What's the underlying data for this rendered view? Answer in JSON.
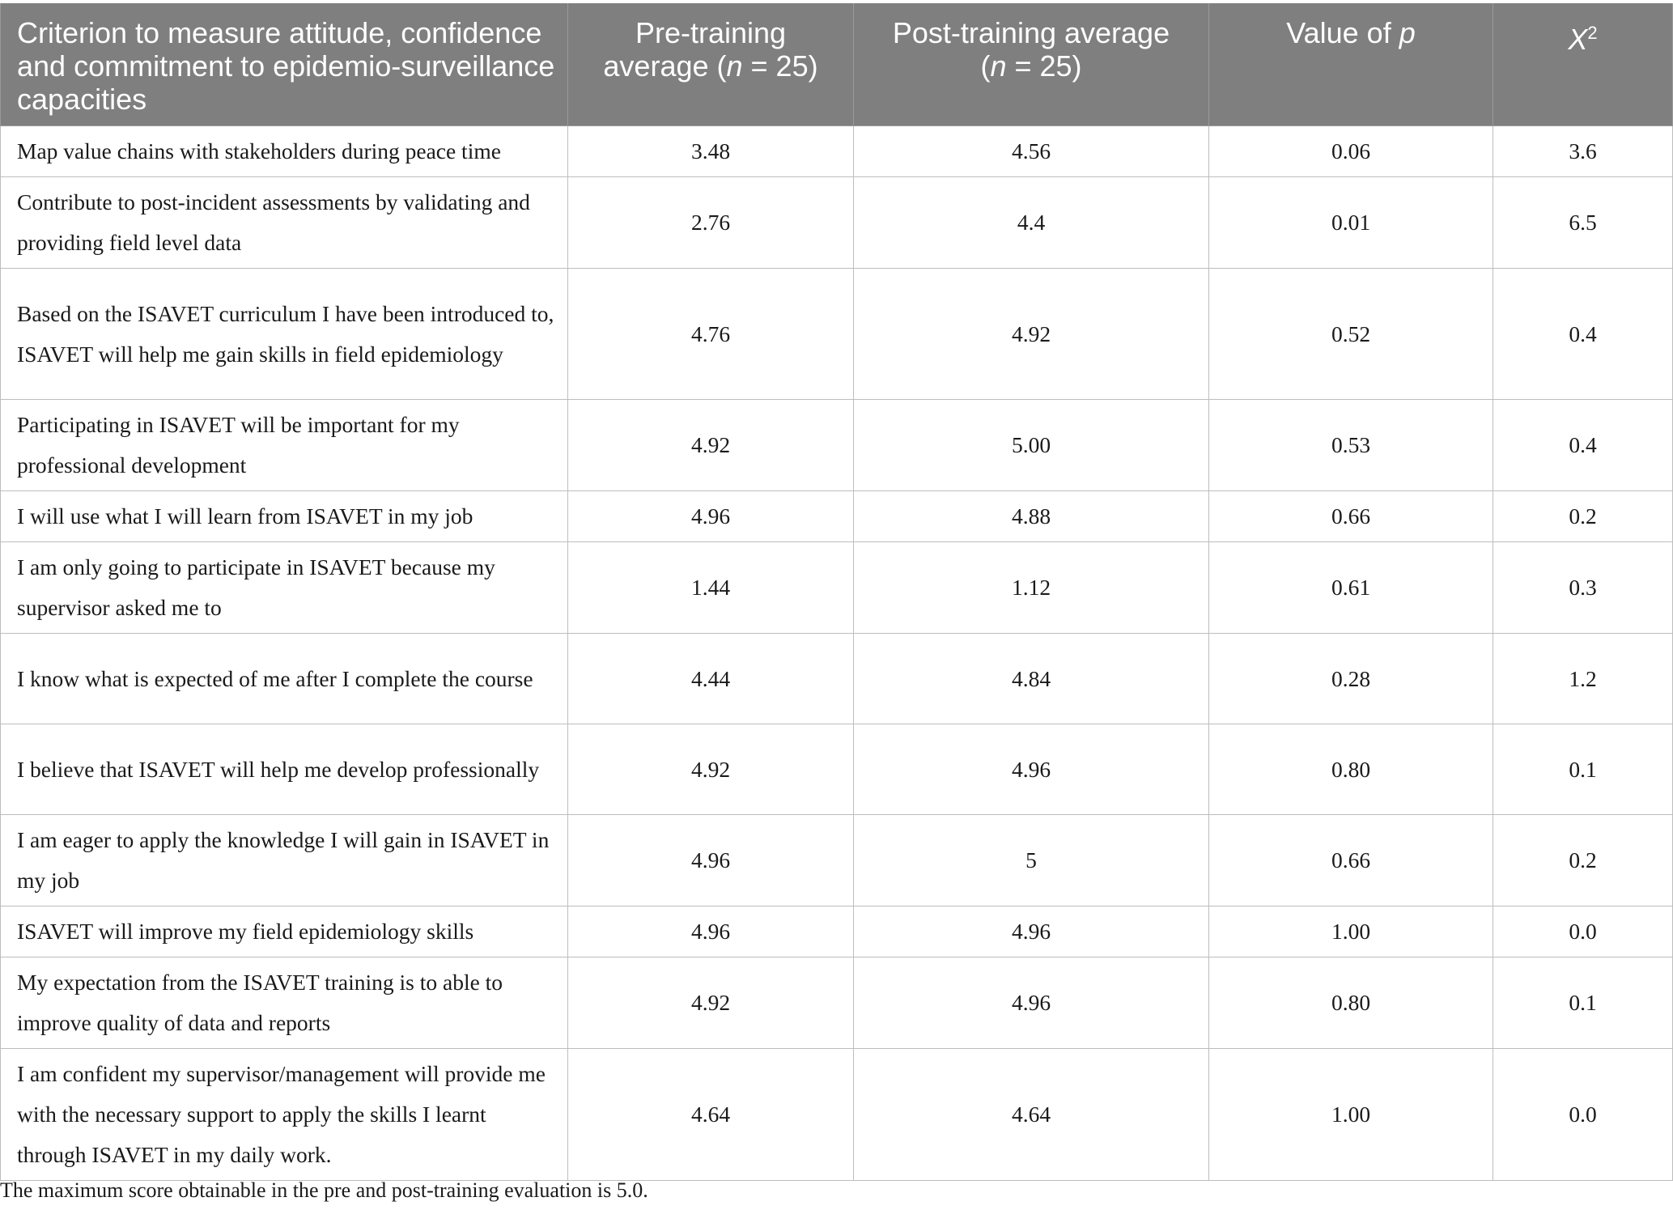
{
  "table": {
    "headers": {
      "criterion": "Criterion to measure attitude, confidence and commitment to epidemio-surveillance capacities",
      "pre_line1": "Pre-training",
      "pre_line2_prefix": "average (",
      "pre_n_var": "n",
      "pre_line2_suffix": " = 25)",
      "post_line1": "Post-training average",
      "post_line2_prefix": "(",
      "post_n_var": "n",
      "post_line2_suffix": " = 25)",
      "pvalue_prefix": "Value of ",
      "pvalue_var": "p",
      "chi_var": "X",
      "chi_sup": "2"
    },
    "rows": [
      {
        "criterion": "Map value chains with stakeholders during peace time",
        "pre": "3.48",
        "post": "4.56",
        "p": "0.06",
        "chi": "3.6"
      },
      {
        "criterion": "Contribute to post-incident assessments by validating and providing field level data",
        "pre": "2.76",
        "post": "4.4",
        "p": "0.01",
        "chi": "6.5"
      },
      {
        "criterion": "Based on the ISAVET curriculum I have been introduced to, ISAVET will help me gain skills in field epidemiology",
        "pre": "4.76",
        "post": "4.92",
        "p": "0.52",
        "chi": "0.4"
      },
      {
        "criterion": "Participating in ISAVET will be important for my professional development",
        "pre": "4.92",
        "post": "5.00",
        "p": "0.53",
        "chi": "0.4"
      },
      {
        "criterion": "I will use what I will learn from ISAVET in my job",
        "pre": "4.96",
        "post": "4.88",
        "p": "0.66",
        "chi": "0.2"
      },
      {
        "criterion": "I am only going to participate in ISAVET because my supervisor asked me to",
        "pre": "1.44",
        "post": "1.12",
        "p": "0.61",
        "chi": "0.3"
      },
      {
        "criterion": "I know what is expected of me after I complete the course",
        "pre": "4.44",
        "post": "4.84",
        "p": "0.28",
        "chi": "1.2"
      },
      {
        "criterion": "I believe that ISAVET will help me develop professionally",
        "pre": "4.92",
        "post": "4.96",
        "p": "0.80",
        "chi": "0.1"
      },
      {
        "criterion": "I am eager to apply the knowledge I will gain in ISAVET in my job",
        "pre": "4.96",
        "post": "5",
        "p": "0.66",
        "chi": "0.2"
      },
      {
        "criterion": "ISAVET will improve my field epidemiology skills",
        "pre": "4.96",
        "post": "4.96",
        "p": "1.00",
        "chi": "0.0"
      },
      {
        "criterion": "My expectation from the ISAVET training is to able to improve quality of data and reports",
        "pre": "4.92",
        "post": "4.96",
        "p": "0.80",
        "chi": "0.1"
      },
      {
        "criterion": "I am confident my supervisor/management will provide me with the necessary support to apply the skills I learnt through ISAVET in my daily work.",
        "pre": "4.64",
        "post": "4.64",
        "p": "1.00",
        "chi": "0.0"
      }
    ]
  },
  "footnote": "The maximum score obtainable in the pre and post-training evaluation is 5.0."
}
